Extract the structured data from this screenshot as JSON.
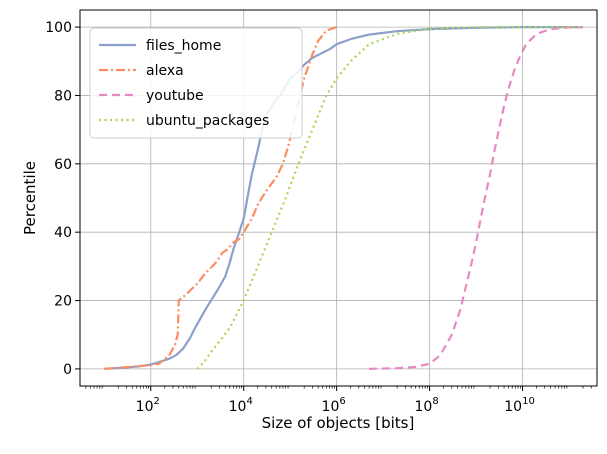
{
  "chart_data": {
    "type": "line",
    "title": "",
    "xlabel": "Size of objects [bits]",
    "ylabel": "Percentile",
    "xscale": "log",
    "xlim": [
      3,
      400000000000
    ],
    "ylim": [
      -5,
      105
    ],
    "xticks": [
      {
        "value": 100,
        "base": "10",
        "exp": "2"
      },
      {
        "value": 10000,
        "base": "10",
        "exp": "4"
      },
      {
        "value": 1000000,
        "base": "10",
        "exp": "6"
      },
      {
        "value": 100000000,
        "base": "10",
        "exp": "8"
      },
      {
        "value": 10000000000,
        "base": "10",
        "exp": "10"
      }
    ],
    "yticks": [
      0,
      20,
      40,
      60,
      80,
      100
    ],
    "grid": true,
    "legend_position": "top-left",
    "series": [
      {
        "name": "files_home",
        "color": "#8da0cb",
        "style": "solid",
        "points": [
          [
            10,
            0
          ],
          [
            30,
            0.4
          ],
          [
            60,
            0.8
          ],
          [
            100,
            1.3
          ],
          [
            150,
            2
          ],
          [
            250,
            3
          ],
          [
            350,
            4
          ],
          [
            500,
            6
          ],
          [
            700,
            9
          ],
          [
            900,
            12
          ],
          [
            1200,
            15
          ],
          [
            1600,
            18
          ],
          [
            2200,
            21
          ],
          [
            3000,
            24
          ],
          [
            4000,
            27
          ],
          [
            5000,
            31
          ],
          [
            6000,
            35
          ],
          [
            8000,
            40
          ],
          [
            10000,
            44
          ],
          [
            12000,
            50
          ],
          [
            15000,
            57
          ],
          [
            20000,
            64
          ],
          [
            25000,
            70
          ],
          [
            30000,
            74
          ],
          [
            40000,
            77
          ],
          [
            60000,
            80
          ],
          [
            100000,
            85
          ],
          [
            150000,
            87
          ],
          [
            200000,
            89
          ],
          [
            300000,
            91
          ],
          [
            500000,
            92.5
          ],
          [
            700000,
            93.5
          ],
          [
            1000000,
            95
          ],
          [
            2000000,
            96.5
          ],
          [
            5000000,
            97.8
          ],
          [
            20000000,
            98.8
          ],
          [
            100000000,
            99.4
          ],
          [
            1000000000,
            99.8
          ],
          [
            10000000000,
            100
          ],
          [
            200000000000,
            100
          ]
        ]
      },
      {
        "name": "alexa",
        "color": "#fc8d62",
        "style": "dashdot",
        "points": [
          [
            10,
            0
          ],
          [
            30,
            0.5
          ],
          [
            80,
            1
          ],
          [
            150,
            1.5
          ],
          [
            250,
            4
          ],
          [
            330,
            7
          ],
          [
            380,
            10
          ],
          [
            400,
            20
          ],
          [
            600,
            22
          ],
          [
            1000,
            25
          ],
          [
            1500,
            28
          ],
          [
            2500,
            31
          ],
          [
            3500,
            34
          ],
          [
            4500,
            35
          ],
          [
            6000,
            37
          ],
          [
            8000,
            38
          ],
          [
            10000,
            40
          ],
          [
            15000,
            44
          ],
          [
            20000,
            48
          ],
          [
            30000,
            52
          ],
          [
            50000,
            56
          ],
          [
            70000,
            60
          ],
          [
            90000,
            65
          ],
          [
            120000,
            72
          ],
          [
            150000,
            78
          ],
          [
            200000,
            85
          ],
          [
            300000,
            92
          ],
          [
            400000,
            96
          ],
          [
            600000,
            99
          ],
          [
            1000000,
            100
          ]
        ]
      },
      {
        "name": "youtube",
        "color": "#e78ac3",
        "style": "dashed",
        "points": [
          [
            5000000,
            0
          ],
          [
            20000000,
            0.2
          ],
          [
            50000000,
            0.6
          ],
          [
            100000000,
            1.5
          ],
          [
            170000000,
            4
          ],
          [
            300000000,
            10
          ],
          [
            450000000,
            17
          ],
          [
            600000000,
            24
          ],
          [
            800000000,
            31
          ],
          [
            1000000000,
            37
          ],
          [
            1300000000,
            45
          ],
          [
            1600000000,
            51
          ],
          [
            2000000000,
            57
          ],
          [
            2500000000,
            64
          ],
          [
            3200000000,
            71
          ],
          [
            4000000000,
            77
          ],
          [
            5000000000,
            82
          ],
          [
            6500000000,
            87
          ],
          [
            8500000000,
            91
          ],
          [
            12000000000,
            95
          ],
          [
            20000000000,
            98
          ],
          [
            40000000000,
            99.4
          ],
          [
            100000000000,
            99.9
          ],
          [
            200000000000,
            100
          ]
        ]
      },
      {
        "name": "ubuntu_packages",
        "color": "#a6d854",
        "style": "dotted",
        "points": [
          [
            1000,
            0
          ],
          [
            1400,
            2
          ],
          [
            2000,
            5
          ],
          [
            3000,
            8
          ],
          [
            5000,
            12
          ],
          [
            10000,
            20
          ],
          [
            20000,
            30
          ],
          [
            40000,
            40
          ],
          [
            80000,
            50
          ],
          [
            150000,
            60
          ],
          [
            300000,
            70
          ],
          [
            600000,
            80
          ],
          [
            1000000,
            85
          ],
          [
            2000000,
            90
          ],
          [
            5000000,
            95
          ],
          [
            20000000,
            98
          ],
          [
            100000000,
            99.5
          ],
          [
            1000000000,
            100
          ],
          [
            200000000000,
            100
          ]
        ]
      }
    ]
  }
}
